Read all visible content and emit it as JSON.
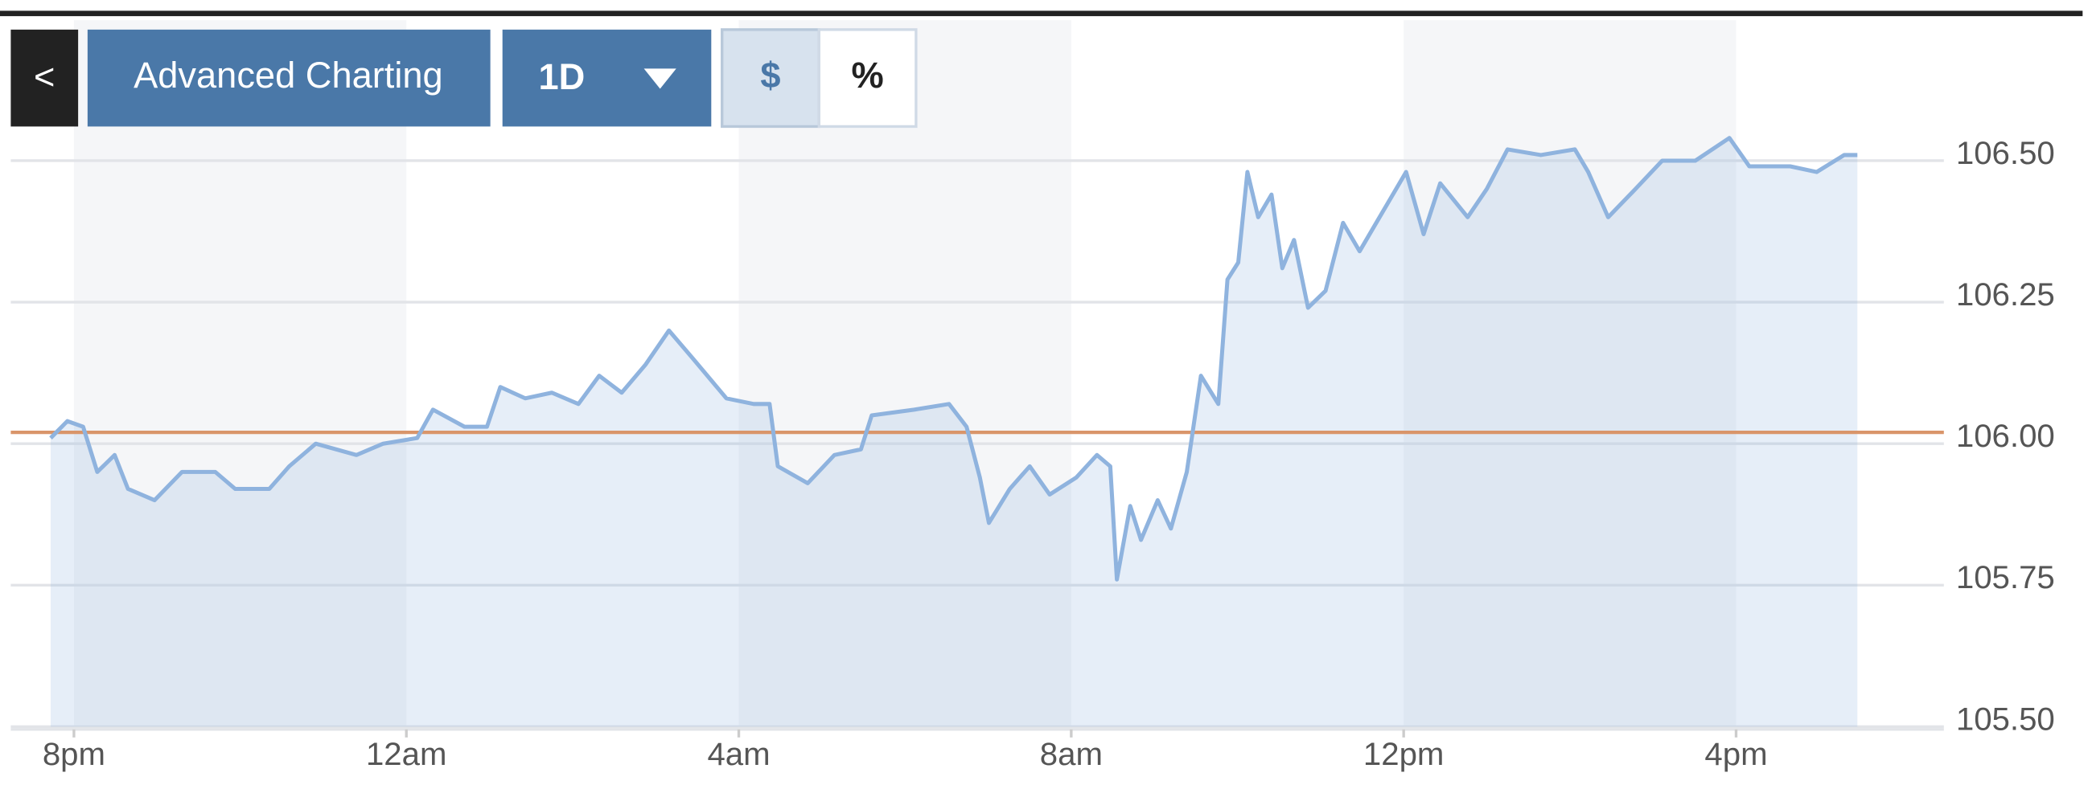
{
  "toolbar": {
    "back": "<",
    "advanced": "Advanced Charting",
    "range": "1D",
    "dollar": "$",
    "percent": "%"
  },
  "chart_data": {
    "type": "line",
    "x": [
      -0.28,
      -0.08,
      0.11,
      0.28,
      0.49,
      0.65,
      0.97,
      1.3,
      1.7,
      1.94,
      2.35,
      2.59,
      2.91,
      3.4,
      3.72,
      4.13,
      4.32,
      4.7,
      4.97,
      5.13,
      5.43,
      5.75,
      6.07,
      6.32,
      6.59,
      6.88,
      7.16,
      7.45,
      7.85,
      8.18,
      8.37,
      8.47,
      8.83,
      9.15,
      9.47,
      9.6,
      10.11,
      10.53,
      10.74,
      10.9,
      11.01,
      11.26,
      11.5,
      11.74,
      12.06,
      12.31,
      12.47,
      12.55,
      12.71,
      12.84,
      13.04,
      13.2,
      13.39,
      13.56,
      13.77,
      13.88,
      14.01,
      14.12,
      14.25,
      14.41,
      14.54,
      14.68,
      14.85,
      15.06,
      15.27,
      15.47,
      15.71,
      16.03,
      16.24,
      16.44,
      16.77,
      17.0,
      17.25,
      17.65,
      18.06,
      18.22,
      18.46,
      18.79,
      19.11,
      19.51,
      19.92,
      20.16,
      20.65,
      20.97,
      21.3,
      21.46
    ],
    "series": [
      {
        "color": "#8fb3de",
        "values": [
          106.01,
          106.04,
          106.03,
          105.95,
          105.98,
          105.92,
          105.9,
          105.95,
          105.95,
          105.92,
          105.92,
          105.96,
          106.0,
          105.98,
          106.0,
          106.01,
          106.06,
          106.03,
          106.03,
          106.1,
          106.08,
          106.09,
          106.07,
          106.12,
          106.09,
          106.14,
          106.2,
          106.15,
          106.08,
          106.07,
          106.07,
          105.96,
          105.93,
          105.98,
          105.99,
          106.05,
          106.06,
          106.07,
          106.03,
          105.94,
          105.86,
          105.92,
          105.96,
          105.91,
          105.94,
          105.98,
          105.96,
          105.76,
          105.89,
          105.83,
          105.9,
          105.85,
          105.95,
          106.12,
          106.07,
          106.29,
          106.32,
          106.48,
          106.4,
          106.44,
          106.31,
          106.36,
          106.24,
          106.27,
          106.39,
          106.34,
          106.4,
          106.48,
          106.37,
          106.46,
          106.4,
          106.45,
          106.52,
          106.51,
          106.52,
          106.48,
          106.4,
          106.45,
          106.5,
          106.5,
          106.54,
          106.49,
          106.49,
          106.48,
          106.51,
          106.51
        ]
      }
    ],
    "reference_line": 106.02,
    "reference_color": "#d9956a",
    "xlim": [
      -0.76,
      22.5
    ],
    "xticks": [
      {
        "value": 0,
        "label": "8pm"
      },
      {
        "value": 4,
        "label": "12am"
      },
      {
        "value": 8,
        "label": "4am"
      },
      {
        "value": 12,
        "label": "8am"
      },
      {
        "value": 16,
        "label": "12pm"
      },
      {
        "value": 20,
        "label": "4pm"
      }
    ],
    "ylim": [
      105.5,
      106.76
    ],
    "yticks": [
      {
        "value": 105.5,
        "label": "105.50"
      },
      105.75,
      {
        "value": 106,
        "label": "106.00"
      },
      106.25,
      {
        "value": 106.5,
        "label": "106.50"
      }
    ],
    "grid": true
  }
}
